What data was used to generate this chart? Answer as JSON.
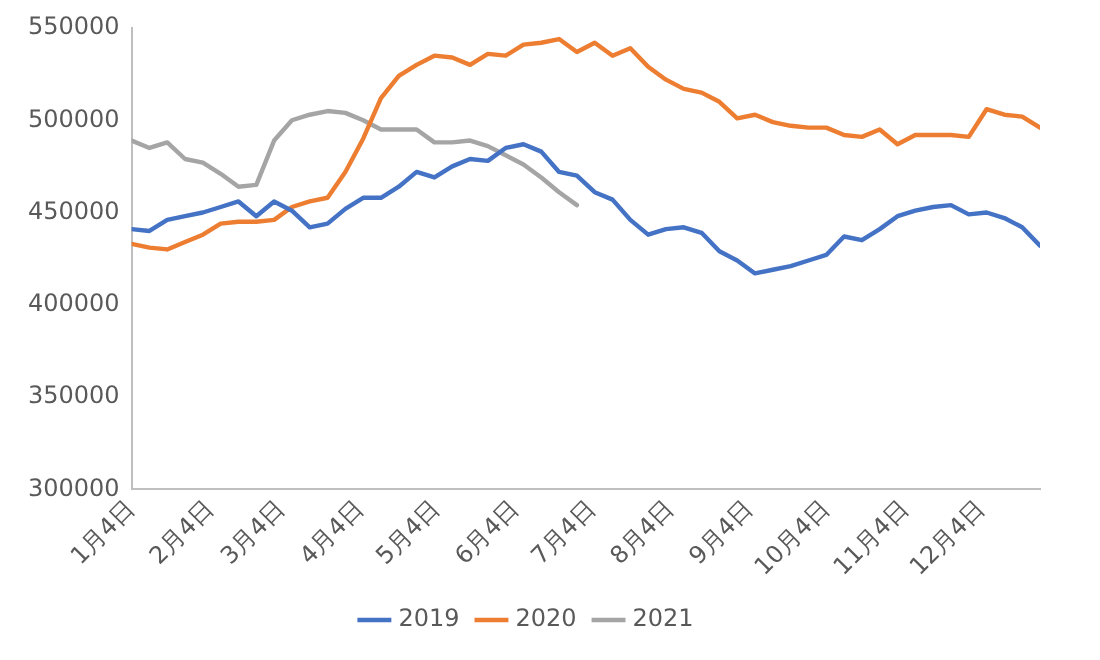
{
  "chart_data": {
    "type": "line",
    "x": [
      "--01-04",
      "--01-11",
      "--01-18",
      "--01-25",
      "--02-01",
      "--02-08",
      "--02-15",
      "--02-22",
      "--03-01",
      "--03-08",
      "--03-15",
      "--03-22",
      "--03-29",
      "--04-05",
      "--04-12",
      "--04-19",
      "--04-26",
      "--05-03",
      "--05-10",
      "--05-17",
      "--05-24",
      "--05-31",
      "--06-07",
      "--06-14",
      "--06-21",
      "--06-28",
      "--07-05",
      "--07-12",
      "--07-19",
      "--07-26",
      "--08-02",
      "--08-09",
      "--08-16",
      "--08-23",
      "--08-30",
      "--09-06",
      "--09-13",
      "--09-20",
      "--09-27",
      "--10-04",
      "--10-11",
      "--10-18",
      "--10-25",
      "--11-01",
      "--11-08",
      "--11-15",
      "--11-22",
      "--11-29",
      "--12-06",
      "--12-13",
      "--12-20",
      "--12-27"
    ],
    "series": [
      {
        "name": "2019",
        "color": "#4472c4",
        "values": [
          441000,
          440000,
          446000,
          448000,
          450000,
          453000,
          456000,
          448000,
          456000,
          451000,
          442000,
          444000,
          452000,
          458000,
          458000,
          464000,
          472000,
          469000,
          475000,
          479000,
          478000,
          485000,
          487000,
          483000,
          472000,
          470000,
          461000,
          457000,
          446000,
          438000,
          441000,
          442000,
          439000,
          429000,
          424000,
          417000,
          419000,
          421000,
          424000,
          427000,
          437000,
          435000,
          441000,
          448000,
          451000,
          453000,
          454000,
          449000,
          450000,
          447000,
          442000,
          432000
        ]
      },
      {
        "name": "2020",
        "color": "#ed7d31",
        "values": [
          433000,
          431000,
          430000,
          434000,
          438000,
          444000,
          445000,
          445000,
          446000,
          453000,
          456000,
          458000,
          472000,
          490000,
          512000,
          524000,
          530000,
          535000,
          534000,
          530000,
          536000,
          535000,
          541000,
          542000,
          544000,
          537000,
          542000,
          535000,
          539000,
          529000,
          522000,
          517000,
          515000,
          510000,
          501000,
          503000,
          499000,
          497000,
          496000,
          496000,
          492000,
          491000,
          495000,
          487000,
          492000,
          492000,
          492000,
          491000,
          506000,
          503000,
          502000,
          496000
        ]
      },
      {
        "name": "2021",
        "color": "#a5a5a5",
        "values": [
          489000,
          485000,
          488000,
          479000,
          477000,
          471000,
          464000,
          465000,
          489000,
          500000,
          503000,
          505000,
          504000,
          500000,
          495000,
          495000,
          495000,
          488000,
          488000,
          489000,
          486000,
          481000,
          476000,
          469000,
          461000,
          454000,
          null,
          null,
          null,
          null,
          null,
          null,
          null,
          null,
          null,
          null,
          null,
          null,
          null,
          null,
          null,
          null,
          null,
          null,
          null,
          null,
          null,
          null,
          null,
          null,
          null,
          null
        ]
      }
    ],
    "xlim": [
      "--01-04",
      "--12-27"
    ],
    "xticks": [
      {
        "value": "--01-04",
        "label": "1月4日"
      },
      {
        "value": "--02-04",
        "label": "2月4日"
      },
      {
        "value": "--03-04",
        "label": "3月4日"
      },
      {
        "value": "--04-04",
        "label": "4月4日"
      },
      {
        "value": "--05-04",
        "label": "5月4日"
      },
      {
        "value": "--06-04",
        "label": "6月4日"
      },
      {
        "value": "--07-04",
        "label": "7月4日"
      },
      {
        "value": "--08-04",
        "label": "8月4日"
      },
      {
        "value": "--09-04",
        "label": "9月4日"
      },
      {
        "value": "--10-04",
        "label": "10月4日"
      },
      {
        "value": "--11-04",
        "label": "11月4日"
      },
      {
        "value": "--12-04",
        "label": "12月4日"
      }
    ],
    "ylim": [
      300000,
      550000
    ],
    "yticks": [
      300000,
      350000,
      400000,
      450000,
      500000,
      550000
    ],
    "grid": false,
    "legend": "bottom",
    "marker": "none",
    "line_style": "solid"
  }
}
